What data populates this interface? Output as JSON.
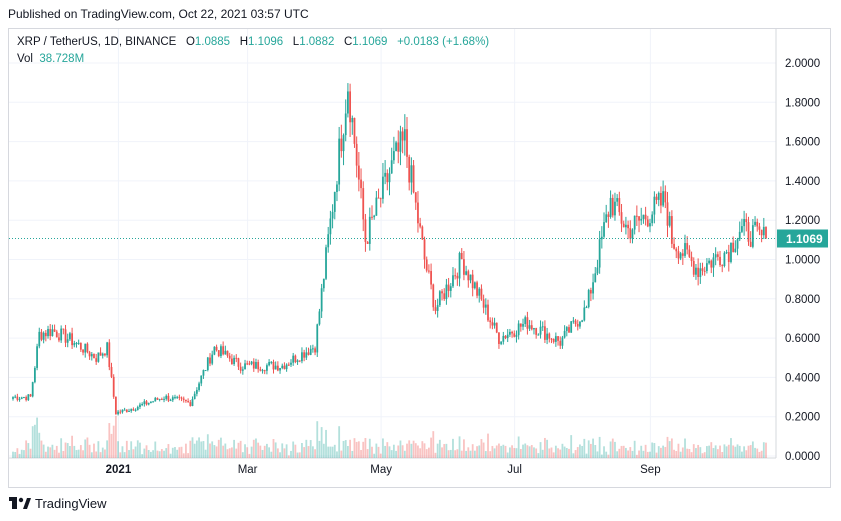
{
  "header": {
    "published": "Published on TradingView.com, Oct 22, 2021 03:57 UTC"
  },
  "legend": {
    "symbol": "XRP / TetherUS, 1D, BINANCE",
    "open_label": "O",
    "open": "1.0885",
    "high_label": "H",
    "high": "1.1096",
    "low_label": "L",
    "low": "1.0882",
    "close_label": "C",
    "close": "1.1069",
    "change": "+0.0183 (+1.68%)",
    "vol_label": "Vol",
    "vol": "38.728M"
  },
  "footer": {
    "brand": "TradingView"
  },
  "colors": {
    "up": "#26a69a",
    "down": "#ef5350",
    "price_line": "#26a69a"
  },
  "chart_data": {
    "type": "candlestick",
    "symbol": "XRP / TetherUS",
    "timeframe": "1D",
    "y_ticks": [
      "2.0000",
      "1.8000",
      "1.6000",
      "1.4000",
      "1.2000",
      "1.0000",
      "0.8000",
      "0.6000",
      "0.4000",
      "0.2000",
      "0.0000"
    ],
    "y_range": [
      0,
      2.0
    ],
    "x_labels": [
      "2021",
      "Mar",
      "May",
      "Jul",
      "Sep"
    ],
    "x_label_dates": [
      "2021-01-01",
      "2021-03-01",
      "2021-05-01",
      "2021-07-01",
      "2021-09-01"
    ],
    "date_range": [
      "2020-11-12",
      "2021-10-22"
    ],
    "last_price": "1.1069",
    "candles": [
      {
        "d": "2020-11-20",
        "c": 0.3
      },
      {
        "d": "2020-11-24",
        "c": 0.62
      },
      {
        "d": "2020-11-30",
        "c": 0.64
      },
      {
        "d": "2020-12-10",
        "c": 0.58
      },
      {
        "d": "2020-12-20",
        "c": 0.5
      },
      {
        "d": "2020-12-25",
        "c": 0.55
      },
      {
        "d": "2020-12-29",
        "c": 0.22
      },
      {
        "d": "2021-01-05",
        "c": 0.24
      },
      {
        "d": "2021-01-20",
        "c": 0.3
      },
      {
        "d": "2021-02-01",
        "c": 0.27
      },
      {
        "d": "2021-02-06",
        "c": 0.4
      },
      {
        "d": "2021-02-12",
        "c": 0.55
      },
      {
        "d": "2021-02-24",
        "c": 0.46
      },
      {
        "d": "2021-03-15",
        "c": 0.46
      },
      {
        "d": "2021-03-30",
        "c": 0.56
      },
      {
        "d": "2021-04-05",
        "c": 1.1
      },
      {
        "d": "2021-04-14",
        "c": 1.9
      },
      {
        "d": "2021-04-22",
        "c": 1.1
      },
      {
        "d": "2021-05-05",
        "c": 1.5
      },
      {
        "d": "2021-05-10",
        "c": 1.6
      },
      {
        "d": "2021-05-19",
        "c": 1.0
      },
      {
        "d": "2021-05-24",
        "c": 0.75
      },
      {
        "d": "2021-06-05",
        "c": 1.0
      },
      {
        "d": "2021-06-22",
        "c": 0.6
      },
      {
        "d": "2021-07-05",
        "c": 0.68
      },
      {
        "d": "2021-07-20",
        "c": 0.58
      },
      {
        "d": "2021-08-01",
        "c": 0.75
      },
      {
        "d": "2021-08-12",
        "c": 1.3
      },
      {
        "d": "2021-08-20",
        "c": 1.15
      },
      {
        "d": "2021-09-06",
        "c": 1.3
      },
      {
        "d": "2021-09-09",
        "c": 1.1
      },
      {
        "d": "2021-09-21",
        "c": 0.95
      },
      {
        "d": "2021-10-05",
        "c": 1.05
      },
      {
        "d": "2021-10-10",
        "c": 1.15
      },
      {
        "d": "2021-10-22",
        "c": 1.1069
      }
    ],
    "grid": true
  }
}
